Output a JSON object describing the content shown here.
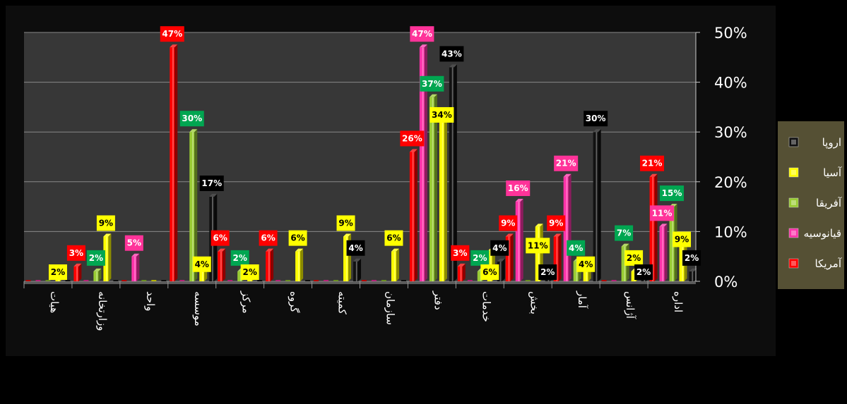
{
  "chart_data": {
    "type": "bar",
    "ylim": [
      0,
      50
    ],
    "y_ticks": [
      "0%",
      "10%",
      "20%",
      "30%",
      "40%",
      "50%"
    ],
    "y_axis_side": "right",
    "grid": true,
    "legend_position": "right",
    "categories": [
      "اداره",
      "آژانس",
      "آمار",
      "بخش",
      "خدمات",
      "دفتر",
      "سازمان",
      "کمیته",
      "گروه",
      "مرکز",
      "موسسه",
      "واحد",
      "وزارتخانه",
      "هیات"
    ],
    "series": [
      {
        "name": "آمریکا",
        "color": "#ff0000",
        "values": [
          21,
          0,
          9,
          9,
          3,
          26,
          0,
          0,
          6,
          6,
          47,
          0,
          3,
          0
        ],
        "labels": [
          "21%",
          "",
          "9%",
          "9%",
          "3%",
          "26%",
          "",
          "",
          "6%",
          "6%",
          "47%",
          "",
          "3%",
          ""
        ]
      },
      {
        "name": "قیانوسیه",
        "color": "#ff33aa",
        "values": [
          11,
          0,
          21,
          16,
          0,
          47,
          0,
          0,
          0,
          0,
          0,
          5,
          0,
          0
        ],
        "labels": [
          "11%",
          "",
          "21%",
          "16%",
          "",
          "47%",
          "",
          "",
          "",
          "",
          "",
          "5%",
          "",
          ""
        ]
      },
      {
        "name": "آفریقا",
        "color": "#99cc33",
        "values": [
          15,
          7,
          4,
          0,
          2,
          37,
          0,
          0,
          0,
          2,
          30,
          0,
          2,
          0
        ],
        "labels": [
          "15%",
          "7%",
          "4%",
          "",
          "2%",
          "37%",
          "",
          "",
          "",
          "2%",
          "30%",
          "",
          "2%",
          ""
        ]
      },
      {
        "name": "آسیا",
        "color": "#ffff00",
        "values": [
          9,
          2,
          4,
          11,
          6,
          34,
          6,
          9,
          6,
          2,
          4,
          0,
          9,
          2
        ],
        "labels": [
          "9%",
          "2%",
          "4%",
          "11%",
          "6%",
          "34%",
          "6%",
          "9%",
          "6%",
          "2%",
          "4%",
          "",
          "9%",
          "2%"
        ]
      },
      {
        "name": "اروپا",
        "color": "#111111",
        "values": [
          2,
          2,
          30,
          2,
          4,
          43,
          0,
          4,
          0,
          0,
          17,
          0,
          0,
          0
        ],
        "labels": [
          "2%",
          "2%",
          "30%",
          "2%",
          "4%",
          "43%",
          "",
          "4%",
          "",
          "",
          "17%",
          "",
          "",
          ""
        ]
      }
    ],
    "legend_order": [
      "اروپا",
      "آسیا",
      "آفریقا",
      "قیانوسیه",
      "آمریکا"
    ],
    "label_box_colors": {
      "آمریکا": "#ff0000",
      "قیانوسیه": "#ff3399",
      "آفریقا": "#00a651",
      "آسیا": "#ffff00",
      "اروپا": "#000000"
    },
    "label_text_colors": {
      "آمریکا": "#ffffff",
      "قیانوسیه": "#ffffff",
      "آفریقا": "#ffffff",
      "آسیا": "#000000",
      "اروپا": "#ffffff"
    }
  },
  "colors": {
    "background": "#000000",
    "plot_area": "#373737",
    "frame": "#0d0d0d",
    "gridline": "#888888",
    "legend_bg": "#555034",
    "text": "#ffffff"
  }
}
